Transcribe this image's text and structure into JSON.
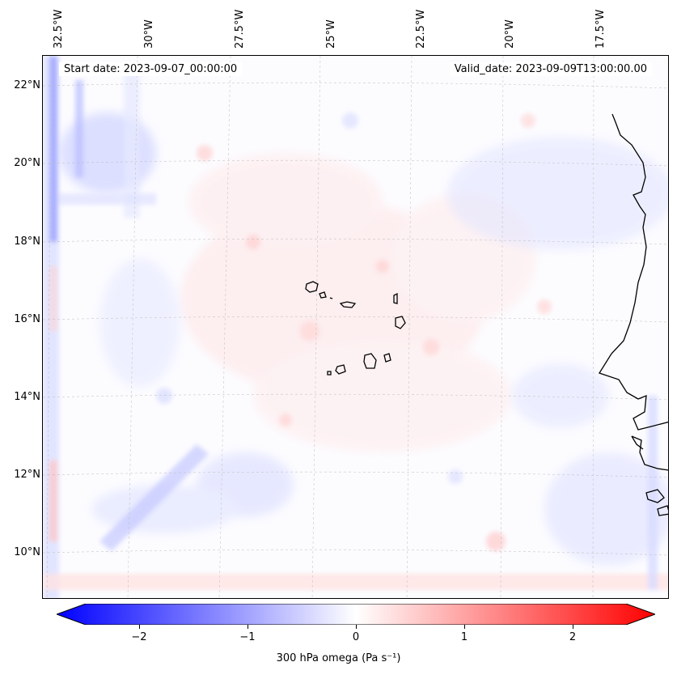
{
  "map": {
    "start_date": "Start date: 2023-09-07_00:00:00",
    "valid_date": "Valid_date: 2023-09-09T13:00:00.00",
    "lon_labels": [
      "32.5°W",
      "30°W",
      "27.5°W",
      "25°W",
      "22.5°W",
      "20°W",
      "17.5°W"
    ],
    "lat_labels": [
      "22°N",
      "20°N",
      "18°N",
      "16°N",
      "14°N",
      "12°N",
      "10°N"
    ]
  },
  "colorbar": {
    "ticks": [
      "−2",
      "−1",
      "0",
      "1",
      "2"
    ],
    "label": "300 hPa omega (Pa s⁻¹)",
    "min_color": "#0000ff",
    "mid_color": "#ffffff",
    "max_color": "#ff0000"
  }
}
